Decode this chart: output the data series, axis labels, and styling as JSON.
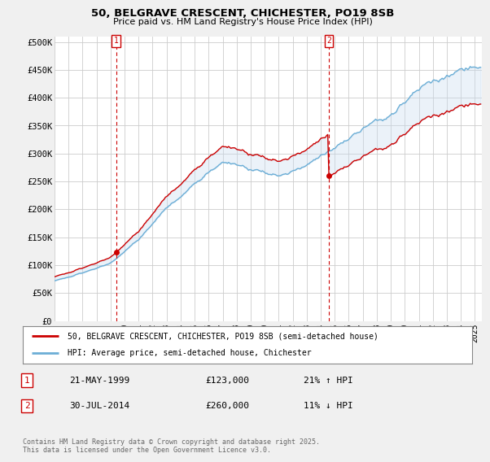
{
  "title_line1": "50, BELGRAVE CRESCENT, CHICHESTER, PO19 8SB",
  "title_line2": "Price paid vs. HM Land Registry's House Price Index (HPI)",
  "ylabel_ticks": [
    "£0",
    "£50K",
    "£100K",
    "£150K",
    "£200K",
    "£250K",
    "£300K",
    "£350K",
    "£400K",
    "£450K",
    "£500K"
  ],
  "ytick_values": [
    0,
    50000,
    100000,
    150000,
    200000,
    250000,
    300000,
    350000,
    400000,
    450000,
    500000
  ],
  "ylim": [
    0,
    510000
  ],
  "xlim_start": 1995.0,
  "xlim_end": 2025.5,
  "xtick_years": [
    1995,
    1996,
    1997,
    1998,
    1999,
    2000,
    2001,
    2002,
    2003,
    2004,
    2005,
    2006,
    2007,
    2008,
    2009,
    2010,
    2011,
    2012,
    2013,
    2014,
    2015,
    2016,
    2017,
    2018,
    2019,
    2020,
    2021,
    2022,
    2023,
    2024,
    2025
  ],
  "hpi_color": "#6baed6",
  "price_color": "#cc0000",
  "fill_color": "#c6dbef",
  "bg_color": "#f0f0f0",
  "plot_bg_color": "#ffffff",
  "grid_color": "#cccccc",
  "purchase1_x": 1999.39,
  "purchase1_y": 123000,
  "purchase1_label": "1",
  "purchase1_date": "21-MAY-1999",
  "purchase1_price": "£123,000",
  "purchase1_hpi": "21% ↑ HPI",
  "purchase2_x": 2014.58,
  "purchase2_y": 260000,
  "purchase2_label": "2",
  "purchase2_date": "30-JUL-2014",
  "purchase2_price": "£260,000",
  "purchase2_hpi": "11% ↓ HPI",
  "legend_line1": "50, BELGRAVE CRESCENT, CHICHESTER, PO19 8SB (semi-detached house)",
  "legend_line2": "HPI: Average price, semi-detached house, Chichester",
  "footnote": "Contains HM Land Registry data © Crown copyright and database right 2025.\nThis data is licensed under the Open Government Licence v3.0.",
  "hpi_seed": 101,
  "red_seed": 202
}
